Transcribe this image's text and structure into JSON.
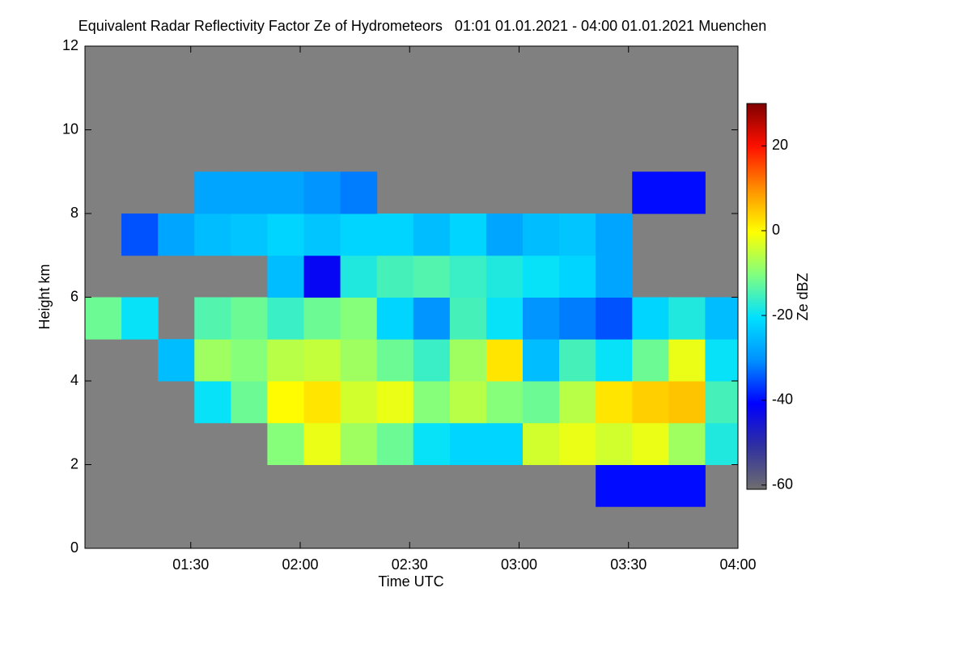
{
  "chart_data": {
    "type": "heatmap",
    "title": "Equivalent Radar Reflectivity Factor Ze of Hydrometeors   01:01 01.01.2021 - 04:00 01.01.2021 Muenchen",
    "x_label": "Time UTC",
    "y_label": "Height km",
    "colorbar_label": "Ze dBZ",
    "xlim": [
      61,
      240
    ],
    "xticks": [
      {
        "value": 90,
        "label": "01:30"
      },
      {
        "value": 120,
        "label": "02:00"
      },
      {
        "value": 150,
        "label": "02:30"
      },
      {
        "value": 180,
        "label": "03:00"
      },
      {
        "value": 210,
        "label": "03:30"
      },
      {
        "value": 240,
        "label": "04:00"
      }
    ],
    "ylim": [
      0,
      12
    ],
    "yticks": [
      0,
      2,
      4,
      6,
      8,
      10,
      12
    ],
    "zlim": [
      -61,
      30
    ],
    "zticks": [
      20,
      0,
      -20,
      -40,
      -60
    ],
    "background": "#808080",
    "colorscale": [
      "#6e6e6e",
      "#3030a0",
      "#0000ff",
      "#0090ff",
      "#00e0ff",
      "#80ff80",
      "#ffff00",
      "#ff9000",
      "#ff1000",
      "#800000"
    ],
    "xbins": [
      61,
      71,
      81,
      91,
      101,
      111,
      121,
      131,
      141,
      151,
      161,
      171,
      181,
      191,
      201,
      211,
      221,
      231,
      240
    ],
    "ybins": [
      1,
      2,
      3,
      4,
      5,
      6,
      7,
      8,
      9
    ],
    "z": [
      [
        null,
        null,
        null,
        null,
        null,
        null,
        null,
        null,
        null,
        null,
        null,
        null,
        null,
        null,
        -40,
        -40,
        -40,
        null
      ],
      [
        null,
        null,
        null,
        null,
        null,
        -10,
        -2,
        -8,
        -12,
        -20,
        -22,
        -22,
        -4,
        -2,
        -4,
        -2,
        -8,
        -18
      ],
      [
        null,
        null,
        null,
        -20,
        -12,
        0,
        2,
        -4,
        -2,
        -10,
        -6,
        -10,
        -12,
        -6,
        2,
        4,
        5,
        -15
      ],
      [
        null,
        null,
        -25,
        -8,
        -10,
        -6,
        -5,
        -8,
        -12,
        -16,
        -8,
        2,
        -25,
        -15,
        -20,
        -12,
        -2,
        -20
      ],
      [
        -12,
        -20,
        null,
        -14,
        -12,
        -16,
        -12,
        -10,
        -22,
        -30,
        -15,
        -20,
        -30,
        -32,
        -35,
        -22,
        -18,
        -25
      ],
      [
        null,
        null,
        null,
        null,
        null,
        -25,
        -42,
        -18,
        -15,
        -14,
        -16,
        -18,
        -20,
        -22,
        -28,
        null,
        null,
        null
      ],
      [
        null,
        -35,
        -28,
        -25,
        -24,
        -22,
        -24,
        -22,
        -22,
        -25,
        -22,
        -28,
        -25,
        -24,
        -28,
        null,
        null,
        null
      ],
      [
        null,
        null,
        null,
        -28,
        -28,
        -28,
        -30,
        -32,
        null,
        null,
        null,
        null,
        null,
        null,
        null,
        -40,
        -40,
        null
      ]
    ]
  }
}
